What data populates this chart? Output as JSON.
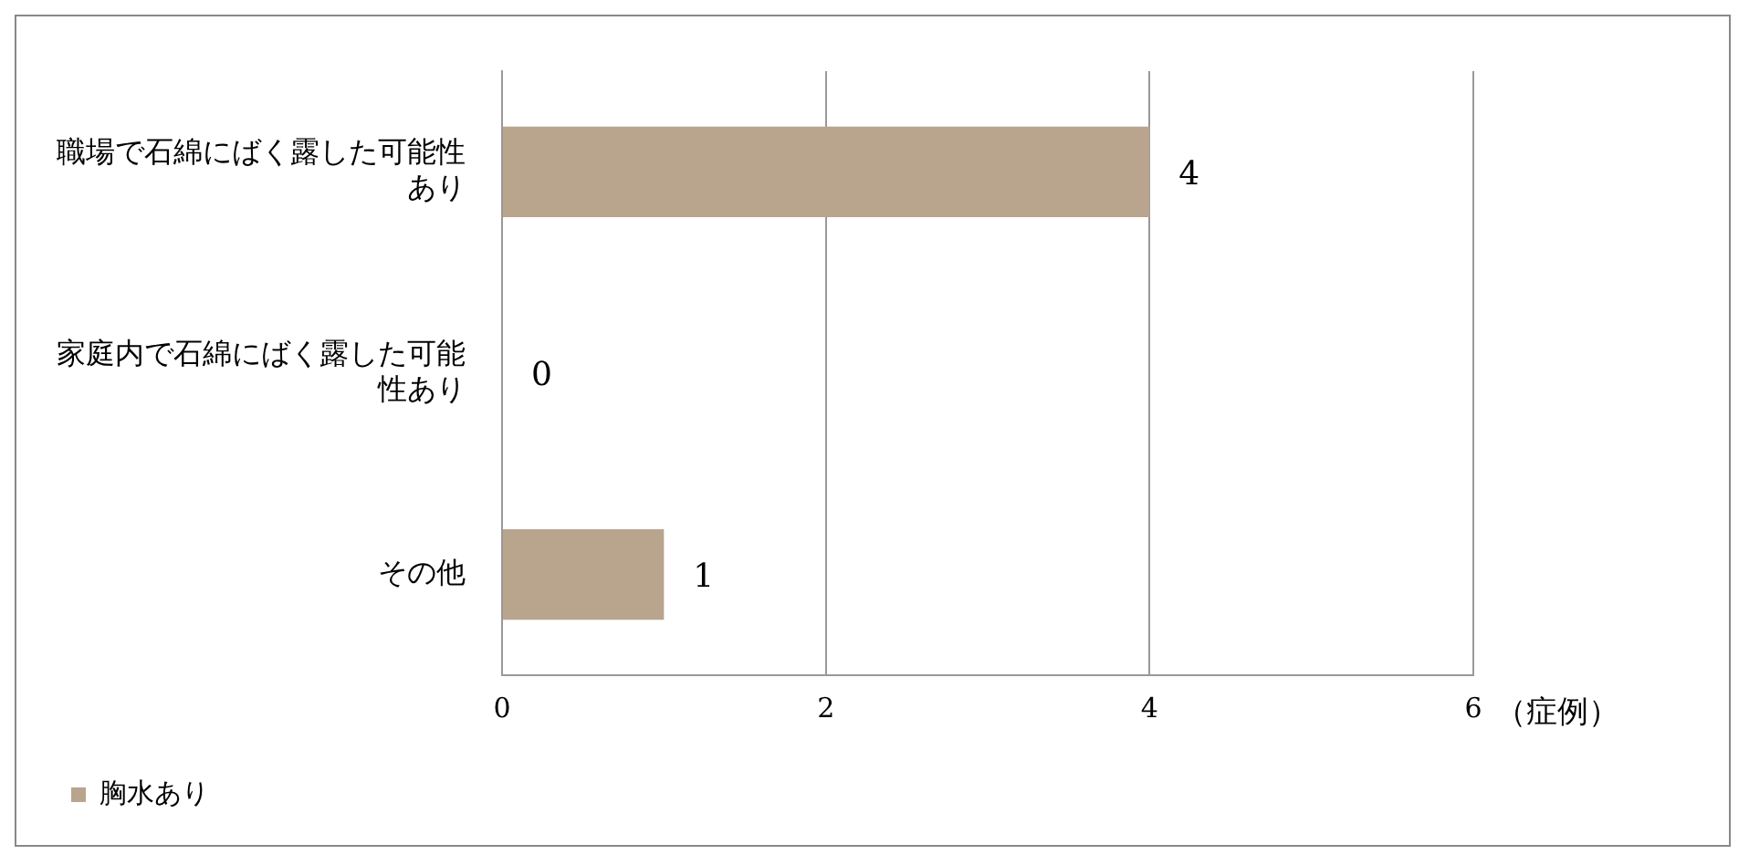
{
  "chart_data": {
    "type": "bar",
    "orientation": "horizontal",
    "categories": [
      "職場で石綿にばく露した可能性あり",
      "家庭内で石綿にばく露した可能性あり",
      "その他"
    ],
    "series": [
      {
        "name": "胸水あり",
        "color": "#b9a48e",
        "values": [
          4,
          0,
          1
        ]
      }
    ],
    "xlim": [
      0,
      6
    ],
    "xticks": [
      0,
      2,
      4,
      6
    ],
    "xlabel": "（症例）",
    "grid": "x",
    "legend": "bottom left",
    "data_labels": true
  }
}
